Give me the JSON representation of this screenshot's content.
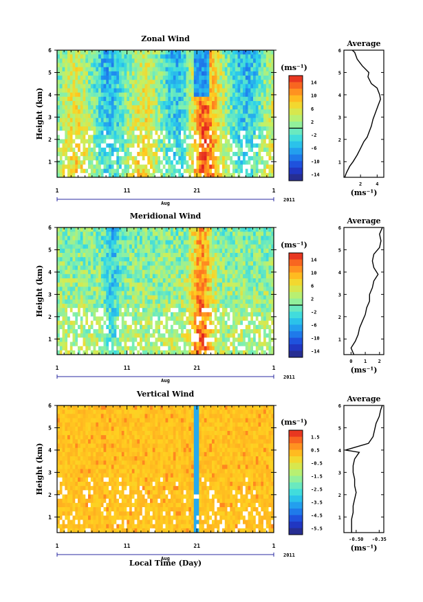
{
  "chart_data": [
    {
      "type": "heatmap",
      "title": "Zonal Wind",
      "ylabel": "Height (km)",
      "unit": "(ms⁻¹)",
      "x_ticks": [
        "1",
        "11",
        "21",
        "1"
      ],
      "x_month": "Aug",
      "year": "2011",
      "y_ticks": [
        "1",
        "2",
        "3",
        "4",
        "5",
        "6"
      ],
      "ylim": [
        0.3,
        6
      ],
      "colorbar_ticks": [
        "14",
        "10",
        "6",
        "2",
        "-2",
        "-6",
        "-10",
        "-14"
      ],
      "colorbar_range": [
        -16,
        16
      ],
      "profile": {
        "title": "Average",
        "x_ticks": [
          "2",
          "4"
        ],
        "xlim": [
          0,
          4.8
        ],
        "xlabel": "(ms⁻¹)",
        "heights": [
          0.3,
          0.5,
          0.8,
          1.0,
          1.3,
          1.6,
          1.9,
          2.1,
          2.4,
          2.6,
          2.9,
          3.2,
          3.5,
          3.8,
          4.0,
          4.3,
          4.5,
          4.8,
          5.0,
          5.3,
          5.6,
          5.9,
          6.0
        ],
        "values": [
          0.1,
          0.3,
          0.7,
          1.1,
          1.6,
          2.0,
          2.4,
          2.8,
          3.1,
          3.3,
          3.5,
          3.8,
          4.1,
          4.4,
          4.3,
          4.0,
          3.3,
          2.9,
          3.0,
          2.2,
          1.6,
          1.3,
          1.0
        ]
      }
    },
    {
      "type": "heatmap",
      "title": "Meridional Wind",
      "ylabel": "Height (km)",
      "unit": "(ms⁻¹)",
      "x_ticks": [
        "1",
        "11",
        "21",
        "1"
      ],
      "x_month": "Aug",
      "year": "2011",
      "y_ticks": [
        "1",
        "2",
        "3",
        "4",
        "5",
        "6"
      ],
      "ylim": [
        0.3,
        6
      ],
      "colorbar_ticks": [
        "14",
        "10",
        "6",
        "2",
        "-2",
        "-6",
        "-10",
        "-14"
      ],
      "colorbar_range": [
        -16,
        16
      ],
      "profile": {
        "title": "Average",
        "x_ticks": [
          "0",
          "1",
          "2"
        ],
        "xlim": [
          -0.5,
          2.3
        ],
        "xlabel": "(ms⁻¹)",
        "heights": [
          0.3,
          0.6,
          0.9,
          1.2,
          1.5,
          1.8,
          2.1,
          2.4,
          2.7,
          3.0,
          3.3,
          3.6,
          3.9,
          4.2,
          4.5,
          4.8,
          5.1,
          5.4,
          5.7,
          6.0
        ],
        "values": [
          0.2,
          0.0,
          0.3,
          0.5,
          0.6,
          0.8,
          1.0,
          1.1,
          1.3,
          1.3,
          1.5,
          1.6,
          1.9,
          1.6,
          1.5,
          1.6,
          2.0,
          2.1,
          2.0,
          2.2
        ]
      }
    },
    {
      "type": "heatmap",
      "title": "Vertical Wind",
      "ylabel": "Height (km)",
      "xlabel": "Local Time (Day)",
      "unit": "(ms⁻¹)",
      "x_ticks": [
        "1",
        "11",
        "21",
        "1"
      ],
      "x_month": "Aug",
      "year": "2011",
      "y_ticks": [
        "1",
        "2",
        "3",
        "4",
        "5",
        "6"
      ],
      "ylim": [
        0.3,
        6
      ],
      "colorbar_ticks": [
        "1.5",
        "0.5",
        "-0.5",
        "-1.5",
        "-2.5",
        "-3.5",
        "-4.5",
        "-5.5"
      ],
      "colorbar_range": [
        -6,
        2
      ],
      "profile": {
        "title": "Average",
        "x_ticks": [
          "-0.50",
          "-0.35"
        ],
        "xlim": [
          -0.58,
          -0.32
        ],
        "xlabel": "(ms⁻¹)",
        "heights": [
          0.3,
          0.6,
          0.9,
          1.2,
          1.5,
          1.8,
          2.1,
          2.4,
          2.7,
          3.0,
          3.3,
          3.6,
          3.9,
          4.0,
          4.3,
          4.6,
          4.9,
          5.2,
          5.5,
          5.8,
          6.0
        ],
        "values": [
          -0.53,
          -0.53,
          -0.53,
          -0.52,
          -0.52,
          -0.51,
          -0.5,
          -0.51,
          -0.51,
          -0.52,
          -0.52,
          -0.51,
          -0.48,
          -0.57,
          -0.42,
          -0.39,
          -0.38,
          -0.37,
          -0.35,
          -0.34,
          -0.33
        ]
      }
    }
  ]
}
